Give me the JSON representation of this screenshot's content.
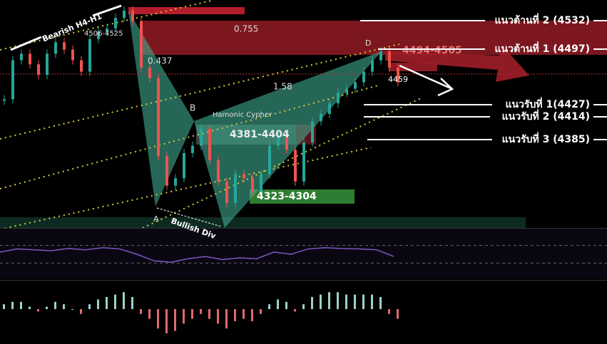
{
  "chart_data": {
    "type": "candles",
    "ylim": [
      4280,
      4560
    ],
    "values": [
      4438,
      4486,
      4494,
      4481,
      4468,
      4494,
      4508,
      4499,
      4486,
      4472,
      4512,
      4521,
      4525,
      4538,
      4547,
      4534,
      4477,
      4464,
      4368,
      4332,
      4341,
      4372,
      4381,
      4402,
      4363,
      4337,
      4311,
      4346,
      4341,
      4324,
      4346,
      4381,
      4394,
      4376,
      4337,
      4385,
      4411,
      4420,
      4433,
      4446,
      4451,
      4459,
      4472,
      4486,
      4497,
      4477,
      4459
    ],
    "up_color": "#26a69a",
    "down_color": "#ef5350",
    "annotations": {
      "pattern_top": "Bearish H4-H1",
      "top_zone": "4506-4525",
      "fib_1": "0.755",
      "fib_2": "0.437",
      "fib_3": "1.58",
      "point_b": "B",
      "pattern_name": "Hamonic Cypher",
      "zone_mid": "4381-4404",
      "zone_low": "4323-4304",
      "point_a": "A",
      "divergence": "Bullish Div",
      "point_d": "D",
      "zone_d": "4494-4505",
      "last_price": "4459"
    },
    "levels": [
      "แนวต้านที่ 2 (4532)",
      "แนวต้านที่ 1 (4497)",
      "แนวรับที่ 1(4427)",
      "แนวรับที่ 2 (4414)",
      "แนวรับที่ 3 (4385)"
    ],
    "rsi": {
      "ylim": [
        0,
        100
      ],
      "levels": [
        70,
        30
      ],
      "color": "#7e57c2",
      "values": [
        55,
        62,
        60,
        58,
        63,
        60,
        65,
        62,
        50,
        35,
        32,
        40,
        45,
        38,
        42,
        40,
        55,
        50,
        62,
        65,
        63,
        62,
        60,
        45
      ]
    },
    "macd": {
      "ylim": [
        -10,
        10
      ],
      "values": [
        2,
        3,
        3,
        1,
        -1,
        1,
        3,
        2,
        0,
        -2,
        2,
        4,
        5,
        6,
        7,
        5,
        -2,
        -4,
        -8,
        -10,
        -9,
        -6,
        -4,
        -2,
        -4,
        -6,
        -8,
        -5,
        -4,
        -5,
        -2,
        2,
        4,
        3,
        -1,
        2,
        5,
        6,
        7,
        7,
        6,
        6,
        6,
        6,
        5,
        -2,
        -4
      ]
    }
  }
}
